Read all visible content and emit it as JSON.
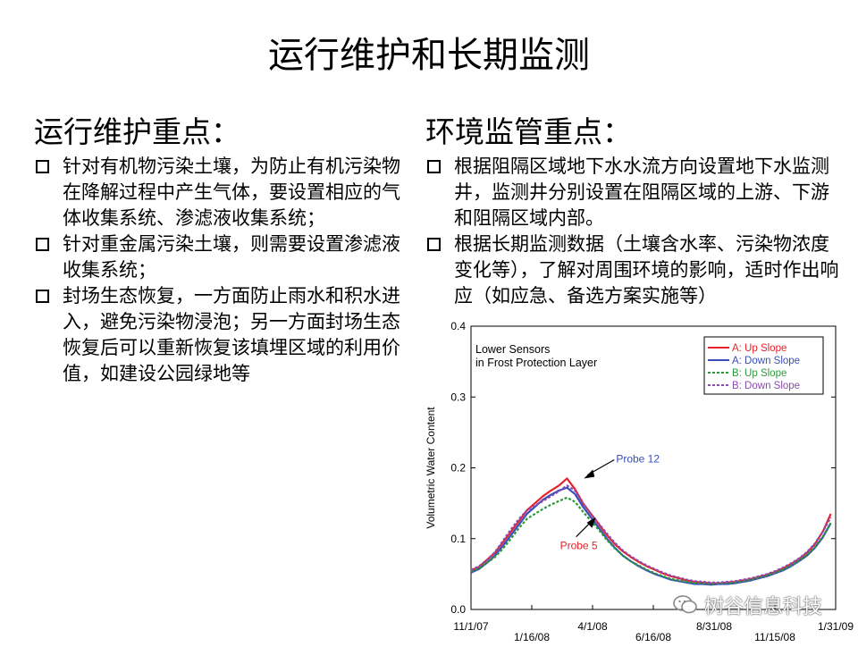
{
  "title": "运行维护和长期监测",
  "left": {
    "heading": "运行维护重点：",
    "items": [
      "针对有机物污染土壤，为防止有机污染物在降解过程中产生气体，要设置相应的气体收集系统、渗滤液收集系统；",
      "针对重金属污染土壤，则需要设置渗滤液收集系统；",
      "封场生态恢复，一方面防止雨水和积水进入，避免污染物浸泡；另一方面封场生态恢复后可以重新恢复该填埋区域的利用价值，如建设公园绿地等"
    ]
  },
  "right": {
    "heading": "环境监管重点：",
    "items": [
      "根据阻隔区域地下水水流方向设置地下水监测井，监测井分别设置在阻隔区域的上游、下游和阻隔区域内部。",
      "根据长期监测数据（土壤含水率、污染物浓度变化等），了解对周围环境的影响，适时作出响应（如应急、备选方案实施等）"
    ]
  },
  "chart_data": {
    "type": "line",
    "annotation_title": [
      "Lower Sensors",
      "in Frost Protection Layer"
    ],
    "ylabel": "Volumetric Water Content",
    "xlabel": "",
    "ylim": [
      0.0,
      0.4
    ],
    "yticks": [
      "0.0",
      "0.1",
      "0.2",
      "0.3",
      "0.4"
    ],
    "xticks": [
      "11/1/07",
      "1/16/08",
      "4/1/08",
      "6/16/08",
      "8/31/08",
      "11/15/08",
      "1/31/09"
    ],
    "x": [
      0,
      10,
      20,
      30,
      40,
      50,
      60,
      70,
      80,
      90,
      100,
      110,
      120,
      130,
      140,
      150,
      160,
      170,
      180,
      190,
      200,
      210,
      220,
      230,
      240,
      250,
      260,
      270,
      280,
      290,
      300,
      310,
      320,
      330,
      340,
      350,
      360,
      370,
      380,
      390,
      400,
      410,
      420,
      430,
      440,
      450
    ],
    "x_tick_positions": [
      0,
      76,
      152,
      228,
      304,
      380,
      456
    ],
    "xlim": [
      0,
      456
    ],
    "legend_position": "top-right",
    "annotations": [
      {
        "text": "Probe 12",
        "x": 130,
        "y": 0.2
      },
      {
        "text": "Probe 5",
        "x": 118,
        "y": 0.095
      }
    ],
    "series": [
      {
        "name": "A: Up Slope",
        "color": "#e8222a",
        "dash": "solid",
        "values": [
          0.055,
          0.06,
          0.07,
          0.08,
          0.095,
          0.11,
          0.125,
          0.14,
          0.15,
          0.16,
          0.168,
          0.175,
          0.185,
          0.17,
          0.15,
          0.135,
          0.12,
          0.105,
          0.092,
          0.082,
          0.074,
          0.067,
          0.061,
          0.056,
          0.051,
          0.047,
          0.044,
          0.041,
          0.039,
          0.038,
          0.037,
          0.037,
          0.038,
          0.039,
          0.041,
          0.043,
          0.046,
          0.049,
          0.053,
          0.058,
          0.064,
          0.071,
          0.08,
          0.092,
          0.11,
          0.135
        ]
      },
      {
        "name": "A: Down Slope",
        "color": "#3a4fb8",
        "dash": "solid",
        "values": [
          0.052,
          0.057,
          0.066,
          0.076,
          0.09,
          0.105,
          0.12,
          0.135,
          0.145,
          0.155,
          0.162,
          0.168,
          0.172,
          0.163,
          0.145,
          0.13,
          0.115,
          0.1,
          0.087,
          0.076,
          0.068,
          0.061,
          0.055,
          0.05,
          0.046,
          0.042,
          0.04,
          0.038,
          0.036,
          0.036,
          0.035,
          0.036,
          0.036,
          0.037,
          0.039,
          0.041,
          0.044,
          0.047,
          0.051,
          0.055,
          0.061,
          0.068,
          0.076,
          0.087,
          0.102,
          0.122
        ]
      },
      {
        "name": "B: Up Slope",
        "color": "#2a9a3a",
        "dash": "dotted",
        "values": [
          0.054,
          0.058,
          0.066,
          0.074,
          0.086,
          0.1,
          0.115,
          0.128,
          0.135,
          0.142,
          0.148,
          0.153,
          0.158,
          0.152,
          0.138,
          0.125,
          0.112,
          0.098,
          0.086,
          0.076,
          0.068,
          0.062,
          0.056,
          0.051,
          0.047,
          0.043,
          0.041,
          0.039,
          0.037,
          0.037,
          0.036,
          0.037,
          0.037,
          0.038,
          0.04,
          0.042,
          0.045,
          0.048,
          0.052,
          0.056,
          0.062,
          0.069,
          0.077,
          0.088,
          0.103,
          0.122
        ]
      },
      {
        "name": "B: Down Slope",
        "color": "#8a4cb0",
        "dash": "dotted",
        "values": [
          0.056,
          0.061,
          0.07,
          0.081,
          0.097,
          0.113,
          0.128,
          0.14,
          0.147,
          0.153,
          0.16,
          0.167,
          0.175,
          0.168,
          0.15,
          0.135,
          0.121,
          0.107,
          0.094,
          0.083,
          0.075,
          0.068,
          0.062,
          0.057,
          0.052,
          0.048,
          0.045,
          0.042,
          0.04,
          0.039,
          0.038,
          0.038,
          0.039,
          0.04,
          0.042,
          0.044,
          0.047,
          0.05,
          0.054,
          0.059,
          0.065,
          0.072,
          0.081,
          0.093,
          0.11,
          0.13
        ]
      }
    ]
  },
  "watermark": {
    "text": "树谷信息科技",
    "icon": "wechat-icon"
  }
}
